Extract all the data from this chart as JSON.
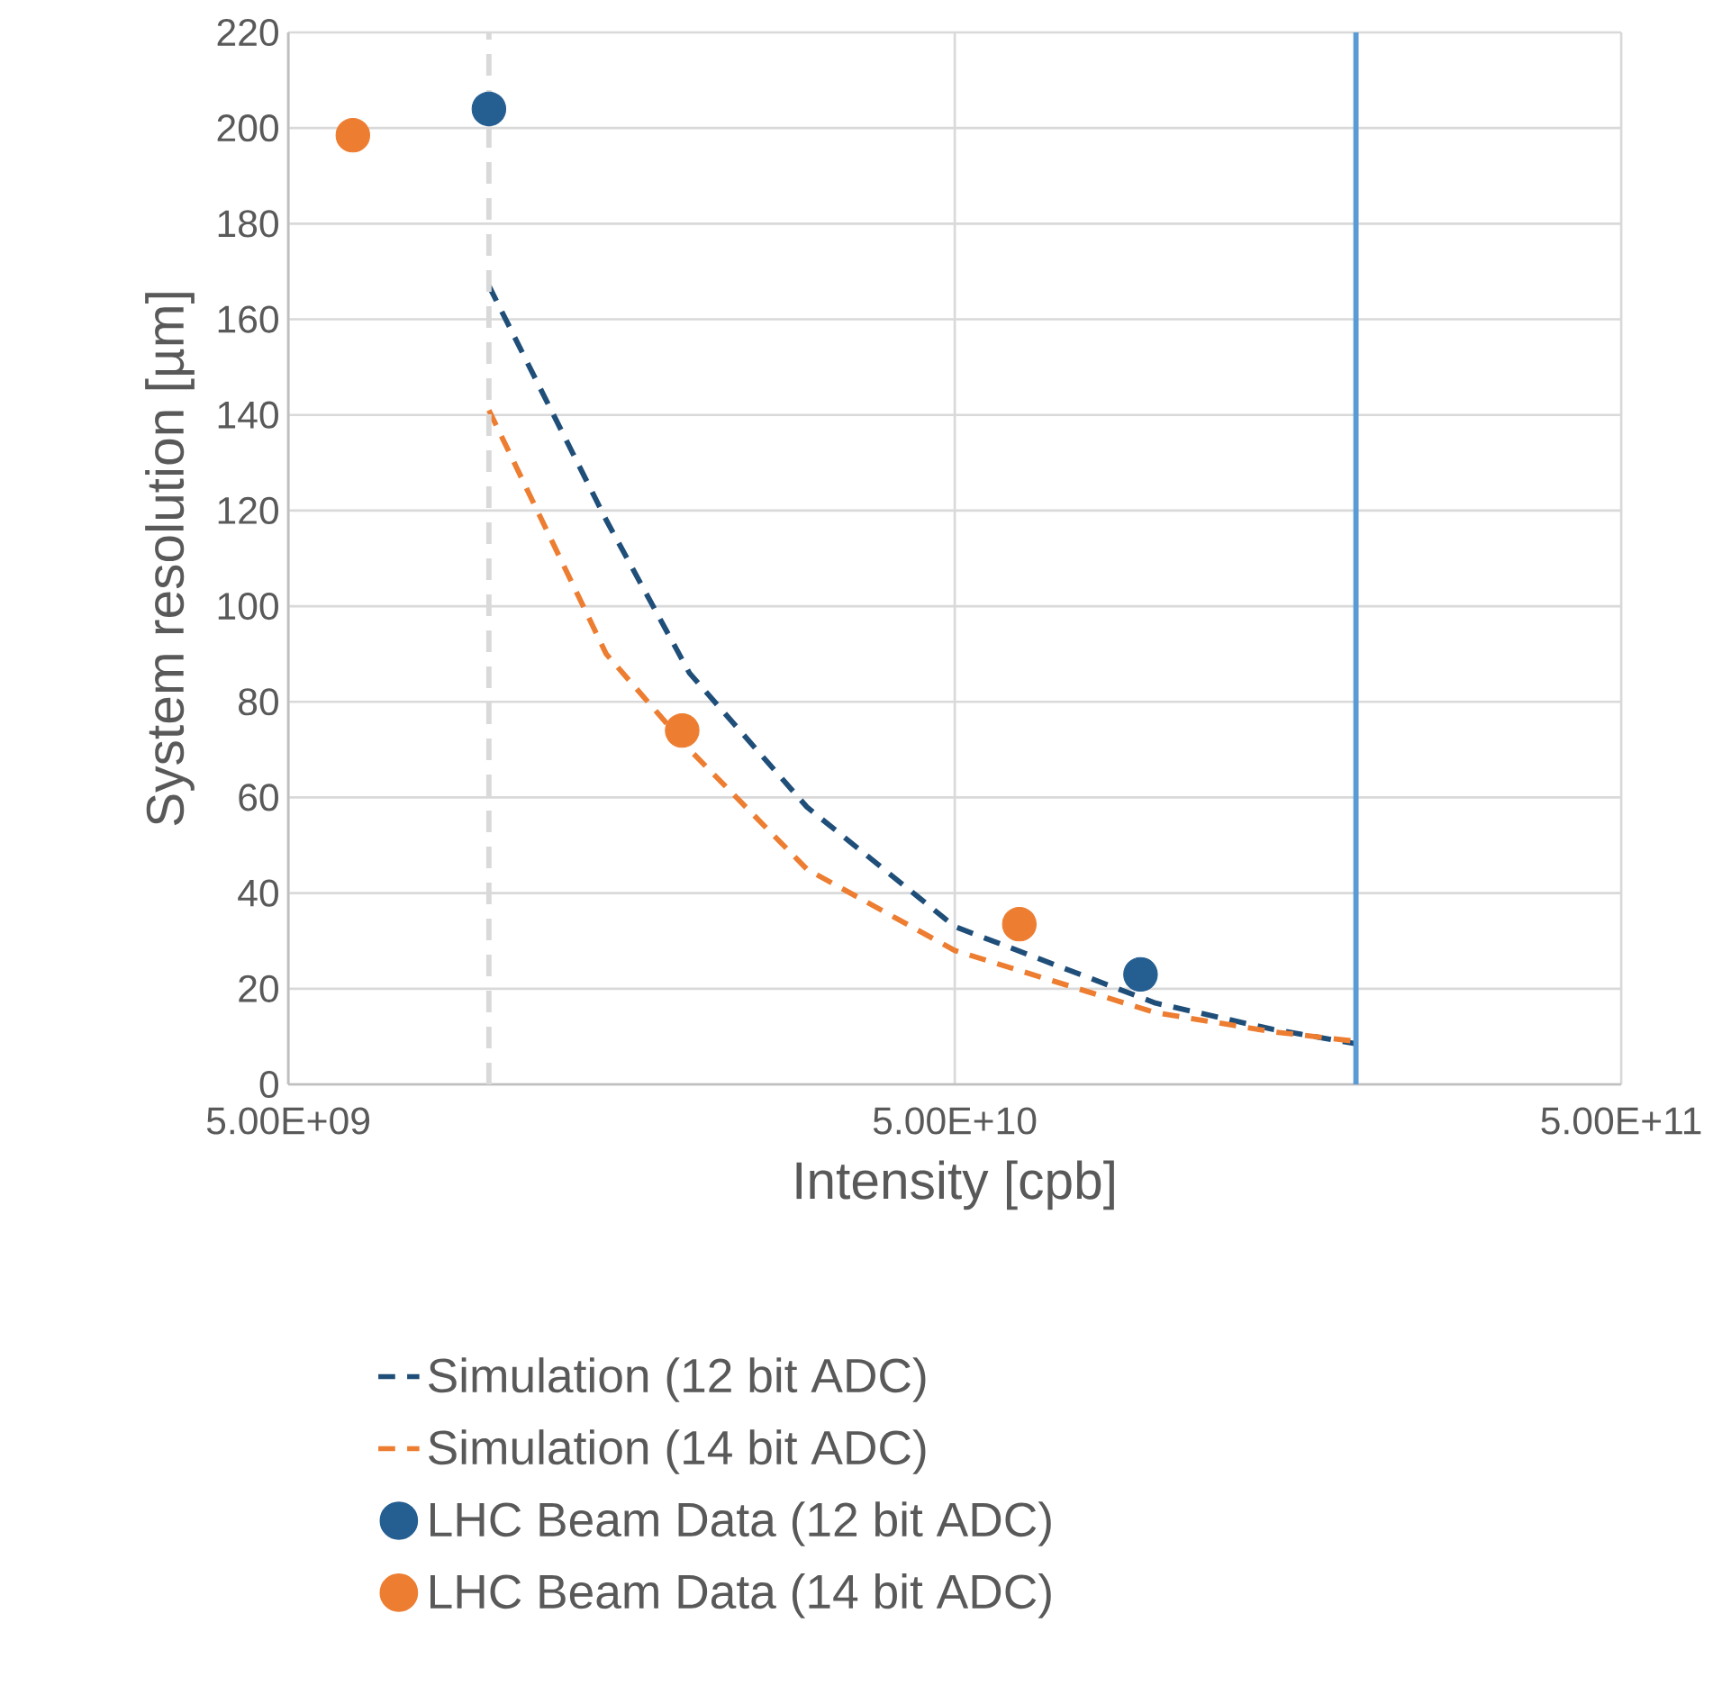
{
  "chart_data": {
    "type": "line",
    "xlabel": "Intensity [cpb]",
    "ylabel": "System resolution [µm]",
    "log": "x",
    "xlim": [
      5000000000.0,
      500000000000.0
    ],
    "xticks": [
      {
        "value": 5000000000.0,
        "label": "5.00E+09"
      },
      {
        "value": 50000000000.0,
        "label": "5.00E+10"
      },
      {
        "value": 500000000000.0,
        "label": "5.00E+11"
      }
    ],
    "ylim": [
      0,
      220
    ],
    "yticks": [
      0,
      20,
      40,
      60,
      80,
      100,
      120,
      140,
      160,
      180,
      200,
      220
    ],
    "grid": true,
    "legend": "bottom",
    "series": [
      {
        "name": "Simulation (12 bit ADC)",
        "line_style": "dashed",
        "marker": "none",
        "color": "#1f4e79",
        "x": [
          10000000000.0,
          15000000000.0,
          20000000000.0,
          30000000000.0,
          50000000000.0,
          100000000000.0,
          150000000000.0,
          200000000000.0
        ],
        "values": [
          167,
          118,
          86,
          58,
          33,
          17,
          11.5,
          8.5
        ]
      },
      {
        "name": "Simulation (14 bit ADC)",
        "line_style": "dashed",
        "marker": "none",
        "color": "#ed7d31",
        "x": [
          10000000000.0,
          15000000000.0,
          20000000000.0,
          30000000000.0,
          50000000000.0,
          100000000000.0,
          150000000000.0,
          200000000000.0
        ],
        "values": [
          141,
          90,
          70,
          45,
          28,
          15,
          11,
          9
        ]
      },
      {
        "name": "LHC Beam Data (12 bit ADC)",
        "type": "scatter",
        "marker": "circle",
        "color": "#255e91",
        "x": [
          10000000000.0,
          95000000000.0
        ],
        "values": [
          204,
          23
        ]
      },
      {
        "name": "LHC Beam Data (14 bit ADC)",
        "type": "scatter",
        "marker": "circle",
        "color": "#ed7d31",
        "x": [
          6250000000.0,
          19500000000.0,
          62500000000.0
        ],
        "values": [
          198.5,
          74,
          33.5
        ]
      }
    ],
    "ref_lines": [
      {
        "axis": "x",
        "value": 10000000000.0,
        "color": "#d9d9d9",
        "line_style": "dashed"
      },
      {
        "axis": "x",
        "value": 200000000000.0,
        "color": "#5b9bd5",
        "line_style": "solid"
      }
    ]
  }
}
